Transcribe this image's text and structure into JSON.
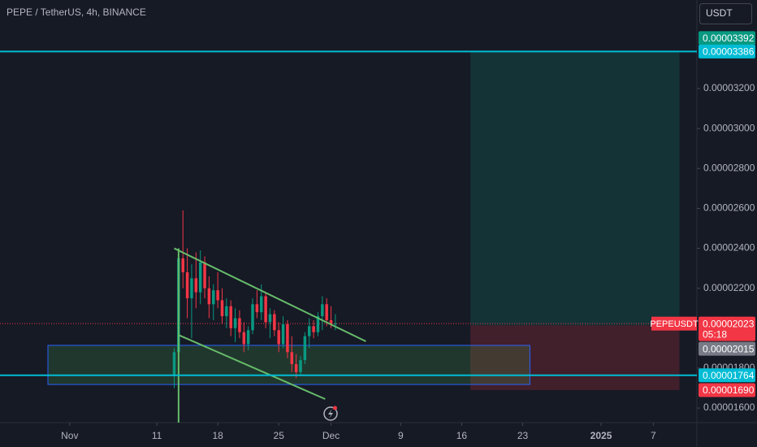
{
  "header": {
    "title": "PEPE / TetherUS, 4h, BINANCE",
    "currency": "USDT"
  },
  "chart_data": {
    "type": "candlestick",
    "x": [
      "2024-11-13 00:00",
      "2024-11-13 12:00",
      "2024-11-14 00:00",
      "2024-11-14 12:00",
      "2024-11-15 00:00",
      "2024-11-15 12:00",
      "2024-11-16 00:00",
      "2024-11-16 12:00",
      "2024-11-17 00:00",
      "2024-11-17 12:00",
      "2024-11-18 00:00",
      "2024-11-18 12:00",
      "2024-11-19 00:00",
      "2024-11-19 12:00",
      "2024-11-20 00:00",
      "2024-11-20 12:00",
      "2024-11-21 00:00",
      "2024-11-21 12:00",
      "2024-11-22 00:00",
      "2024-11-22 12:00",
      "2024-11-23 00:00",
      "2024-11-23 12:00",
      "2024-11-24 00:00",
      "2024-11-24 12:00",
      "2024-11-25 00:00",
      "2024-11-25 12:00",
      "2024-11-26 00:00",
      "2024-11-26 12:00",
      "2024-11-27 00:00",
      "2024-11-27 12:00",
      "2024-11-28 00:00",
      "2024-11-28 12:00",
      "2024-11-29 00:00",
      "2024-11-29 12:00",
      "2024-11-30 00:00",
      "2024-11-30 12:00",
      "2024-12-01 00:00",
      "2024-12-01 12:00"
    ],
    "open": [
      1.76e-05,
      1.88e-05,
      2.35e-05,
      2.28e-05,
      2.15e-05,
      2.25e-05,
      2.18e-05,
      2.33e-05,
      2.2e-05,
      2.12e-05,
      2.19e-05,
      2.14e-05,
      2.06e-05,
      2.11e-05,
      2e-05,
      2.05e-05,
      1.98e-05,
      1.92e-05,
      1.99e-05,
      2.12e-05,
      2.08e-05,
      2.16e-05,
      2.03e-05,
      2.07e-05,
      1.99e-05,
      1.92e-05,
      2.02e-05,
      1.88e-05,
      1.82e-05,
      1.78e-05,
      1.84e-05,
      1.96e-05,
      2.01e-05,
      1.98e-05,
      2.06e-05,
      2.12e-05,
      2.04e-05,
      2.02e-05
    ],
    "high": [
      1.9e-05,
      2.4e-05,
      2.59e-05,
      2.4e-05,
      2.32e-05,
      2.38e-05,
      2.39e-05,
      2.36e-05,
      2.26e-05,
      2.22e-05,
      2.28e-05,
      2.2e-05,
      2.15e-05,
      2.14e-05,
      2.1e-05,
      2.09e-05,
      2.03e-05,
      2.01e-05,
      2.15e-05,
      2.19e-05,
      2.22e-05,
      2.18e-05,
      2.1e-05,
      2.09e-05,
      2.03e-05,
      2.06e-05,
      2.04e-05,
      1.96e-05,
      1.87e-05,
      1.86e-05,
      1.98e-05,
      2.05e-05,
      2.04e-05,
      2.08e-05,
      2.16e-05,
      2.15e-05,
      2.11e-05,
      2.07e-05
    ],
    "low": [
      1.7e-05,
      1.85e-05,
      2.2e-05,
      2.05e-05,
      1.95e-05,
      2.1e-05,
      2.12e-05,
      2.15e-05,
      2.05e-05,
      2.04e-05,
      2.1e-05,
      2.02e-05,
      2e-05,
      1.96e-05,
      1.93e-05,
      1.95e-05,
      1.88e-05,
      1.89e-05,
      1.97e-05,
      2.05e-05,
      2.04e-05,
      2e-05,
      1.95e-05,
      1.96e-05,
      1.88e-05,
      1.9e-05,
      1.85e-05,
      1.78e-05,
      1.75e-05,
      1.76e-05,
      1.82e-05,
      1.9e-05,
      1.95e-05,
      1.96e-05,
      1.99e-05,
      2.01e-05,
      2e-05,
      1.99e-05
    ],
    "close": [
      1.88e-05,
      2.35e-05,
      2.28e-05,
      2.15e-05,
      2.25e-05,
      2.18e-05,
      2.33e-05,
      2.2e-05,
      2.12e-05,
      2.19e-05,
      2.14e-05,
      2.06e-05,
      2.11e-05,
      2e-05,
      2.05e-05,
      1.98e-05,
      1.92e-05,
      1.99e-05,
      2.12e-05,
      2.08e-05,
      2.16e-05,
      2.03e-05,
      2.07e-05,
      1.99e-05,
      1.92e-05,
      2.02e-05,
      1.88e-05,
      1.82e-05,
      1.78e-05,
      1.84e-05,
      1.96e-05,
      2.01e-05,
      1.98e-05,
      2.06e-05,
      2.12e-05,
      2.04e-05,
      2.02e-05,
      2.023e-05
    ],
    "up_color": "#089981",
    "down_color": "#f23645",
    "xlim": [
      "2024-10-24",
      "2025-01-12"
    ],
    "xticks": [
      {
        "value": "2024-11-01",
        "label": "Nov"
      },
      {
        "value": "2024-11-11",
        "label": "11"
      },
      {
        "value": "2024-11-18",
        "label": "18"
      },
      {
        "value": "2024-11-25",
        "label": "25"
      },
      {
        "value": "2024-12-01",
        "label": "Dec"
      },
      {
        "value": "2024-12-09",
        "label": "9"
      },
      {
        "value": "2024-12-16",
        "label": "16"
      },
      {
        "value": "2024-12-23",
        "label": "23"
      },
      {
        "value": "2025-01-01",
        "label": "2025"
      },
      {
        "value": "2025-01-07",
        "label": "7"
      }
    ],
    "ylim": [
      1.527e-05,
      3.644e-05
    ],
    "yticks": [
      {
        "value": 1.6e-05,
        "label": "0.00001600"
      },
      {
        "value": 1.8e-05,
        "label": "0.00001800"
      },
      {
        "value": 2.2e-05,
        "label": "0.00002200"
      },
      {
        "value": 2.4e-05,
        "label": "0.00002400"
      },
      {
        "value": 2.6e-05,
        "label": "0.00002600"
      },
      {
        "value": 2.8e-05,
        "label": "0.00002800"
      },
      {
        "value": 3e-05,
        "label": "0.00003000"
      },
      {
        "value": 3.2e-05,
        "label": "0.00003200"
      }
    ],
    "price_tags": [
      {
        "value": 3.392e-05,
        "color": "#089981"
      },
      {
        "value": 3.386e-05,
        "color": "#00bcd4"
      },
      {
        "value": 2.023e-05,
        "color": "#f23645",
        "symbol": "PEPEUSDT",
        "countdown": "05:18"
      },
      {
        "value": 2.015e-05,
        "color": "#787b86"
      },
      {
        "value": 1.764e-05,
        "color": "#00bcd4"
      },
      {
        "value": 1.69e-05,
        "label": "0.00001690",
        "color": "#f23645"
      }
    ],
    "horizontal_lines": [
      {
        "value": 3.386e-05,
        "color": "#00bcd4"
      },
      {
        "value": 1.764e-05,
        "color": "#00bcd4"
      }
    ],
    "position": {
      "start": "2024-12-17",
      "end": "2025-01-10",
      "entry": 2.015e-05,
      "target": 3.386e-05,
      "stop": 1.69e-05
    },
    "zone": {
      "start": "2024-10-29 12:00",
      "end": "2024-12-23 20:00",
      "top": 1.914e-05,
      "bottom": 1.718e-05
    },
    "trendlines": [
      {
        "x": [
          "2024-11-13 00:00",
          "2024-12-05 00:00"
        ],
        "y": [
          2.4e-05,
          1.934e-05
        ]
      },
      {
        "x": [
          "2024-11-13 12:00",
          "2024-11-30 08:00"
        ],
        "y": [
          1.966e-05,
          1.645e-05
        ]
      }
    ],
    "vertical_line": {
      "x": "2024-11-13 12:00",
      "y": [
        2.4e-05,
        1.527e-05
      ]
    }
  }
}
